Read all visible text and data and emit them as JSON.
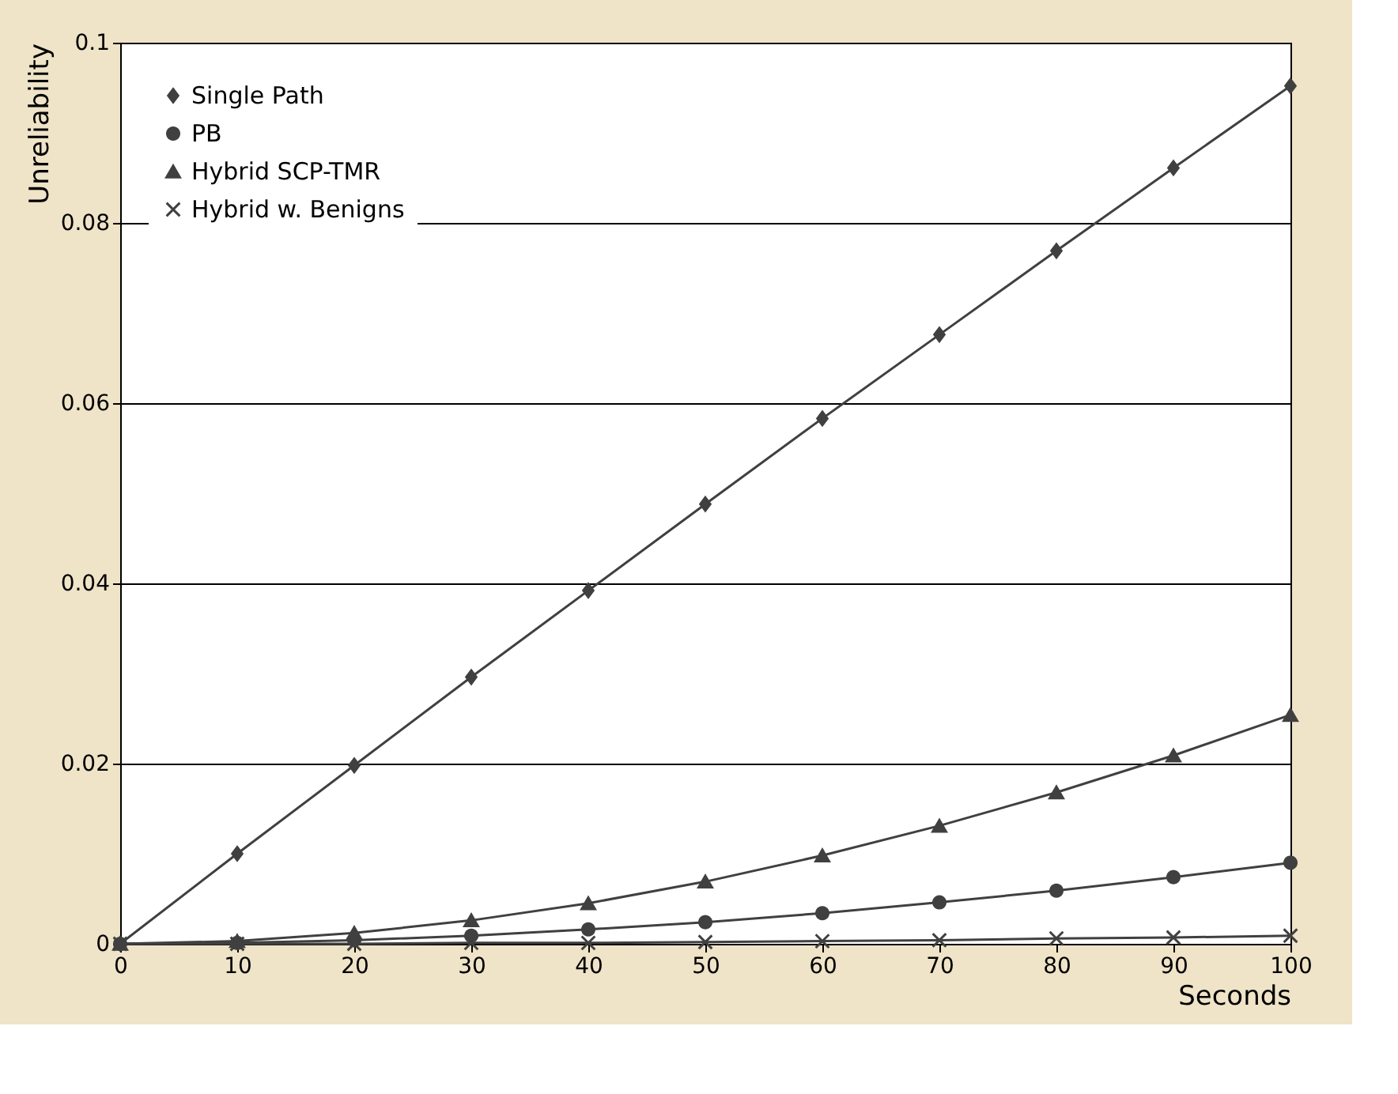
{
  "chart_data": {
    "type": "line",
    "xlabel": "Seconds",
    "ylabel": "Unreliability",
    "x": [
      0,
      10,
      20,
      30,
      40,
      50,
      60,
      70,
      80,
      90,
      100
    ],
    "xlim": [
      0,
      100
    ],
    "xticks": [
      0,
      10,
      20,
      30,
      40,
      50,
      60,
      70,
      80,
      90,
      100
    ],
    "ylim": [
      0,
      0.1
    ],
    "yticks": [
      0,
      0.02,
      0.04,
      0.06,
      0.08,
      0.1
    ],
    "grid": "y",
    "legend": "top left",
    "line_style": "solid",
    "series": [
      {
        "name": "Single Path",
        "color": "#404040",
        "marker": "diamond",
        "values": [
          0,
          0.01,
          0.0198,
          0.0296,
          0.0392,
          0.0488,
          0.0583,
          0.0676,
          0.0769,
          0.0861,
          0.0952
        ]
      },
      {
        "name": "PB",
        "color": "#404040",
        "marker": "circle",
        "values": [
          0,
          0.0001,
          0.0004,
          0.0009,
          0.0016,
          0.0024,
          0.0034,
          0.0046,
          0.0059,
          0.0074,
          0.009
        ]
      },
      {
        "name": "Hybrid SCP-TMR",
        "color": "#404040",
        "marker": "triangle",
        "values": [
          0,
          0.0003,
          0.0012,
          0.0026,
          0.0045,
          0.0069,
          0.0098,
          0.0131,
          0.0168,
          0.0209,
          0.0254
        ]
      },
      {
        "name": "Hybrid w. Benigns",
        "color": "#404040",
        "marker": "cross",
        "values": [
          0,
          0,
          0,
          0.0001,
          0.0001,
          0.0002,
          0.0003,
          0.0004,
          0.0006,
          0.0007,
          0.0009
        ]
      }
    ]
  }
}
